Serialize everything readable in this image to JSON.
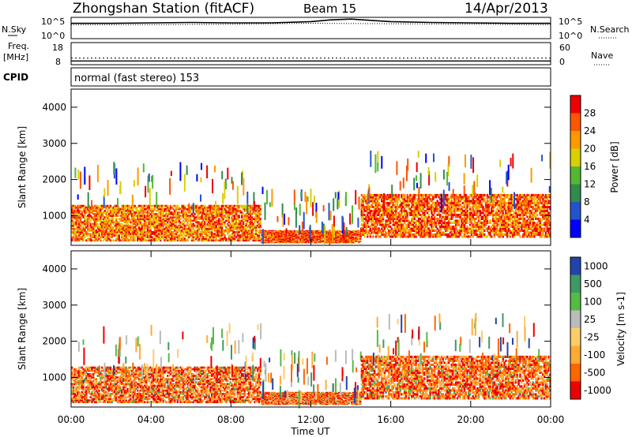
{
  "header": {
    "station": "Zhongshan Station (fitACF)",
    "beam": "Beam 15",
    "date": "14/Apr/2013",
    "cpid_mode": "normal (fast stereo) 153"
  },
  "chart_data": [
    {
      "type": "line",
      "panel": "noise",
      "left_label": "N.Sky",
      "right_label": "N.Search",
      "left_ticks": [
        "10^5",
        "10^0"
      ],
      "right_ticks": [
        "10^5",
        "10^0"
      ],
      "series": [
        {
          "name": "N.Sky",
          "x": [
            0,
            2,
            4,
            6,
            8,
            10,
            12,
            13,
            14,
            15,
            16,
            18,
            20,
            22,
            24
          ],
          "values": [
            3.6,
            3.6,
            3.7,
            3.8,
            3.7,
            3.7,
            4.0,
            4.4,
            4.6,
            4.3,
            4.0,
            3.8,
            3.7,
            3.6,
            3.6
          ]
        },
        {
          "name": "N.Search",
          "x": [
            0,
            4,
            8,
            12,
            16,
            20,
            24
          ],
          "values": [
            3.3,
            3.3,
            3.4,
            3.6,
            3.5,
            3.4,
            3.3
          ]
        }
      ]
    },
    {
      "type": "scatter",
      "panel": "frequency",
      "left_label": "Freq.",
      "left_unit": "[MHz]",
      "right_label": "Nave",
      "left_ticks": [
        "18",
        "8"
      ],
      "right_ticks": [
        "60",
        "0"
      ],
      "freq_mhz": 11.0,
      "nave": 10
    },
    {
      "type": "heatmap",
      "panel": "power",
      "ylabel": "Slant Range [km]",
      "xlabel": "",
      "ylim": [
        180,
        4500
      ],
      "yticks": [
        "1000",
        "2000",
        "3000",
        "4000"
      ],
      "colorbar_label": "Power [dB]",
      "colorbar_ticks": [
        "4",
        "8",
        "12",
        "16",
        "20",
        "24",
        "28"
      ],
      "colorscale": [
        "#0000ff",
        "#2255cc",
        "#2f8c4c",
        "#55b833",
        "#d8d000",
        "#ff9900",
        "#ff5500",
        "#ee0000"
      ],
      "regions": [
        {
          "t0": 0.0,
          "t1": 9.5,
          "r0": 300,
          "r1": 1300,
          "level": 0.8
        },
        {
          "t0": 9.5,
          "t1": 14.5,
          "r0": 250,
          "r1": 600,
          "level": 0.9
        },
        {
          "t0": 14.5,
          "t1": 24.0,
          "r0": 400,
          "r1": 1600,
          "level": 0.85
        }
      ]
    },
    {
      "type": "heatmap",
      "panel": "velocity",
      "ylabel": "Slant Range [km]",
      "xlabel": "Time UT",
      "ylim": [
        180,
        4500
      ],
      "yticks": [
        "1000",
        "2000",
        "3000",
        "4000"
      ],
      "xticks": [
        "00:00",
        "04:00",
        "08:00",
        "12:00",
        "16:00",
        "20:00",
        "00:00"
      ],
      "colorbar_label": "Velocity [m s-1]",
      "colorbar_ticks": [
        "1000",
        "500",
        "100",
        "25",
        "-25",
        "-100",
        "-500",
        "-1000"
      ],
      "colorscale": [
        "#2244aa",
        "#3d9a66",
        "#55bb44",
        "#bbbbbb",
        "#ffcc66",
        "#ffaa33",
        "#ff6600",
        "#ee0000"
      ],
      "regions": [
        {
          "t0": 0.0,
          "t1": 9.5,
          "r0": 300,
          "r1": 1300,
          "vel": -200
        },
        {
          "t0": 9.5,
          "t1": 14.5,
          "r0": 250,
          "r1": 600,
          "vel": -250
        },
        {
          "t0": 14.5,
          "t1": 24.0,
          "r0": 400,
          "r1": 1600,
          "vel": -150
        }
      ]
    }
  ]
}
